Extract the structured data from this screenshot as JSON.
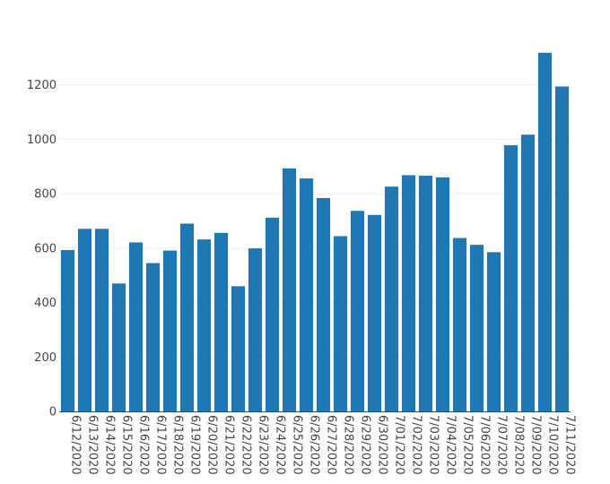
{
  "chart_data": {
    "type": "bar",
    "title": "",
    "xlabel": "",
    "ylabel": "",
    "ylim": [
      0,
      1380
    ],
    "yticks": [
      0,
      200,
      400,
      600,
      800,
      1000,
      1200
    ],
    "grid": true,
    "bar_color": "#1f77b4",
    "categories": [
      "6/12/2020",
      "6/13/2020",
      "6/14/2020",
      "6/15/2020",
      "6/16/2020",
      "6/17/2020",
      "6/18/2020",
      "6/19/2020",
      "6/20/2020",
      "6/21/2020",
      "6/22/2020",
      "6/23/2020",
      "6/24/2020",
      "6/25/2020",
      "6/26/2020",
      "6/27/2020",
      "6/28/2020",
      "6/29/2020",
      "6/30/2020",
      "7/01/2020",
      "7/02/2020",
      "7/03/2020",
      "7/04/2020",
      "7/05/2020",
      "7/06/2020",
      "7/07/2020",
      "7/08/2020",
      "7/09/2020",
      "7/10/2020",
      "7/11/2020"
    ],
    "values": [
      593,
      671,
      671,
      470,
      621,
      545,
      591,
      690,
      632,
      656,
      460,
      599,
      712,
      893,
      856,
      784,
      644,
      737,
      722,
      826,
      868,
      866,
      860,
      637,
      612,
      585,
      978,
      1017,
      1318,
      1194
    ]
  }
}
